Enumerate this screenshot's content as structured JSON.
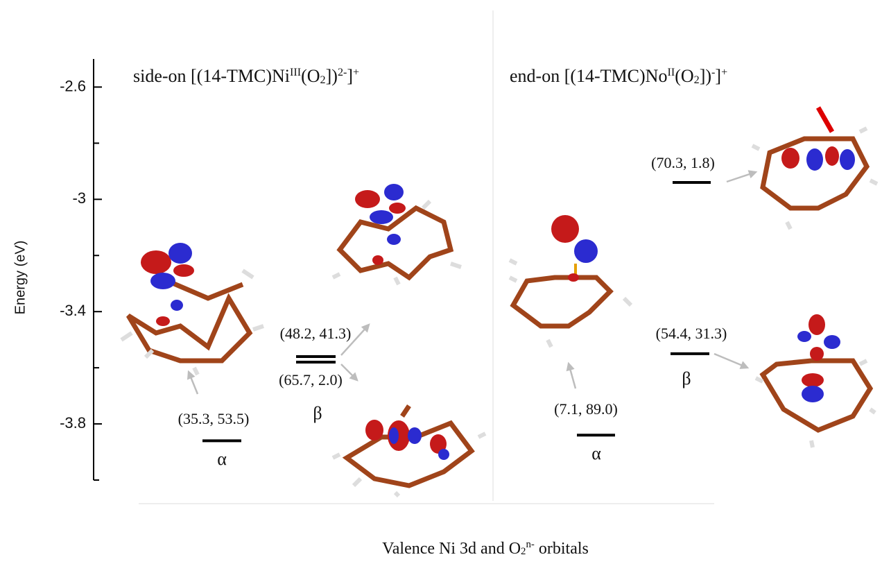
{
  "chart_data": {
    "type": "level",
    "ylabel": "Energy (eV)",
    "xlabel": [
      "Valence Ni 3d and O",
      "2",
      "n-",
      " orbitals"
    ],
    "ylim": [
      -4.0,
      -2.5
    ],
    "yticks": [
      -2.6,
      -3.0,
      -3.4,
      -3.8
    ],
    "yminorticks": [
      -2.8,
      -3.2,
      -3.6,
      -4.0
    ],
    "color": "#000000",
    "panels": [
      {
        "title": [
          "side-on [(14-TMC)Ni",
          "III",
          "(O",
          "2",
          "])",
          "2-",
          "]",
          "+"
        ],
        "levels": [
          {
            "value": -3.86,
            "label": "(35.3, 53.5)",
            "spin": "α"
          },
          {
            "value": -3.56,
            "label": "(48.2, 41.3)",
            "spin": "β"
          },
          {
            "value": -3.58,
            "label": "(65.7, 2.0)"
          }
        ]
      },
      {
        "title": [
          "end-on [(14-TMC)No",
          "II",
          "(O",
          "2",
          "])",
          "-",
          "]",
          "+"
        ],
        "levels": [
          {
            "value": -3.84,
            "label": "(7.1,  89.0)",
            "spin": "α"
          },
          {
            "value": -3.55,
            "label": "(54.4, 31.3)",
            "spin": "β"
          },
          {
            "value": -2.94,
            "label": "(70.3, 1.8)"
          }
        ]
      }
    ]
  }
}
